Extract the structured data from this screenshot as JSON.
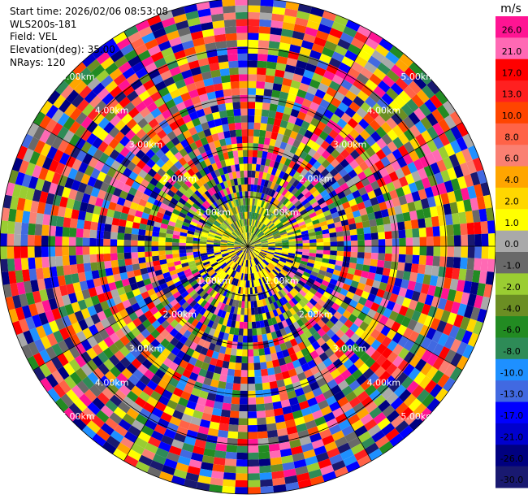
{
  "header": {
    "start_time": "Start time: 2026/02/06 08:53:08",
    "station": "WLS200s-181",
    "field": "Field: VEL",
    "elevation": "Elevation(deg): 35.00",
    "nrays": "NRays: 120"
  },
  "chart_data": {
    "type": "heatmap",
    "projection": "polar-ppi",
    "field": "VEL",
    "units": "m/s",
    "nrays": 120,
    "elevation_deg": 35.0,
    "range_rings_km": [
      1.0,
      2.0,
      3.0,
      4.0,
      5.0
    ],
    "ring_labels": [
      "1.00km",
      "2.00km",
      "3.00km",
      "4.00km",
      "5.00km"
    ],
    "max_range_km": 5.0,
    "spokes_every_deg": 30,
    "colorbar": {
      "unit_label": "m/s",
      "ticks": [
        "26.0",
        "21.0",
        "17.0",
        "13.0",
        "10.0",
        "8.0",
        "6.0",
        "4.0",
        "2.0",
        "1.0",
        "0.0",
        "-1.0",
        "-2.0",
        "-4.0",
        "-6.0",
        "-8.0",
        "-10.0",
        "-13.0",
        "-17.0",
        "-21.0",
        "-26.0",
        "-30.0"
      ],
      "colors": [
        "#ff1493",
        "#ff69b4",
        "#ff0000",
        "#ff2020",
        "#ff4500",
        "#ff6347",
        "#fa8072",
        "#ffa500",
        "#ffd700",
        "#ffff00",
        "#a9a9a9",
        "#696969",
        "#9acd32",
        "#6b8e23",
        "#228b22",
        "#2e8b57",
        "#1e90ff",
        "#4169e1",
        "#0000ff",
        "#0000cd",
        "#000080",
        "#191970"
      ]
    }
  }
}
